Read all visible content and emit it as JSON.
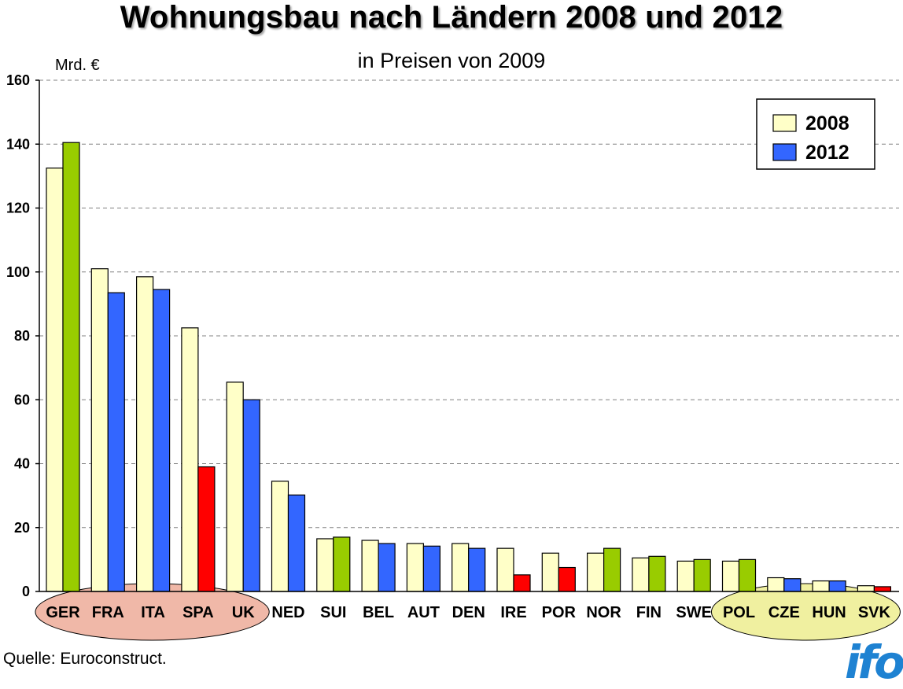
{
  "title": "Wohnungsbau nach Ländern 2008 und 2012",
  "subtitle": "in Preisen von 2009",
  "unit": "Mrd. €",
  "source": "Quelle: Euroconstruct.",
  "logo": "ifo",
  "colors": {
    "y2008": "#ffffc8",
    "increase": "#99cc00",
    "decrease": "#3366ff",
    "strong_decrease": "#ff0000",
    "group_red": "#f0b8a8",
    "group_yellow": "#f0f0a0"
  },
  "chart_data": {
    "type": "bar",
    "ylim": [
      0,
      160
    ],
    "yticks": [
      "0",
      "20",
      "40",
      "60",
      "80",
      "100",
      "120",
      "140",
      "160"
    ],
    "grid": true,
    "legend_position": "top-right",
    "categories": [
      "GER",
      "FRA",
      "ITA",
      "SPA",
      "UK",
      "NED",
      "SUI",
      "BEL",
      "AUT",
      "DEN",
      "IRE",
      "POR",
      "NOR",
      "FIN",
      "SWE",
      "POL",
      "CZE",
      "HUN",
      "SVK"
    ],
    "series": [
      {
        "name": "2008",
        "values": [
          132.5,
          101,
          98.5,
          82.5,
          65.5,
          34.5,
          16.5,
          16,
          15,
          15,
          13.5,
          12,
          12,
          10.5,
          9.5,
          9.5,
          4.3,
          3.3,
          1.8
        ]
      },
      {
        "name": "2012",
        "values": [
          140.5,
          93.5,
          94.5,
          39,
          60,
          30.2,
          17,
          15,
          14.2,
          13.5,
          5.2,
          7.5,
          13.5,
          11,
          10,
          10,
          4,
          3.3,
          1.5
        ],
        "bar_colors": [
          "increase",
          "decrease",
          "decrease",
          "strong_decrease",
          "decrease",
          "decrease",
          "increase",
          "decrease",
          "decrease",
          "decrease",
          "strong_decrease",
          "strong_decrease",
          "increase",
          "increase",
          "increase",
          "increase",
          "decrease",
          "decrease",
          "strong_decrease"
        ]
      }
    ],
    "category_groups": [
      {
        "members": [
          "GER",
          "FRA",
          "ITA",
          "SPA",
          "UK"
        ],
        "color": "group_red"
      },
      {
        "members": [
          "POL",
          "CZE",
          "HUN",
          "SVK"
        ],
        "color": "group_yellow"
      }
    ]
  }
}
